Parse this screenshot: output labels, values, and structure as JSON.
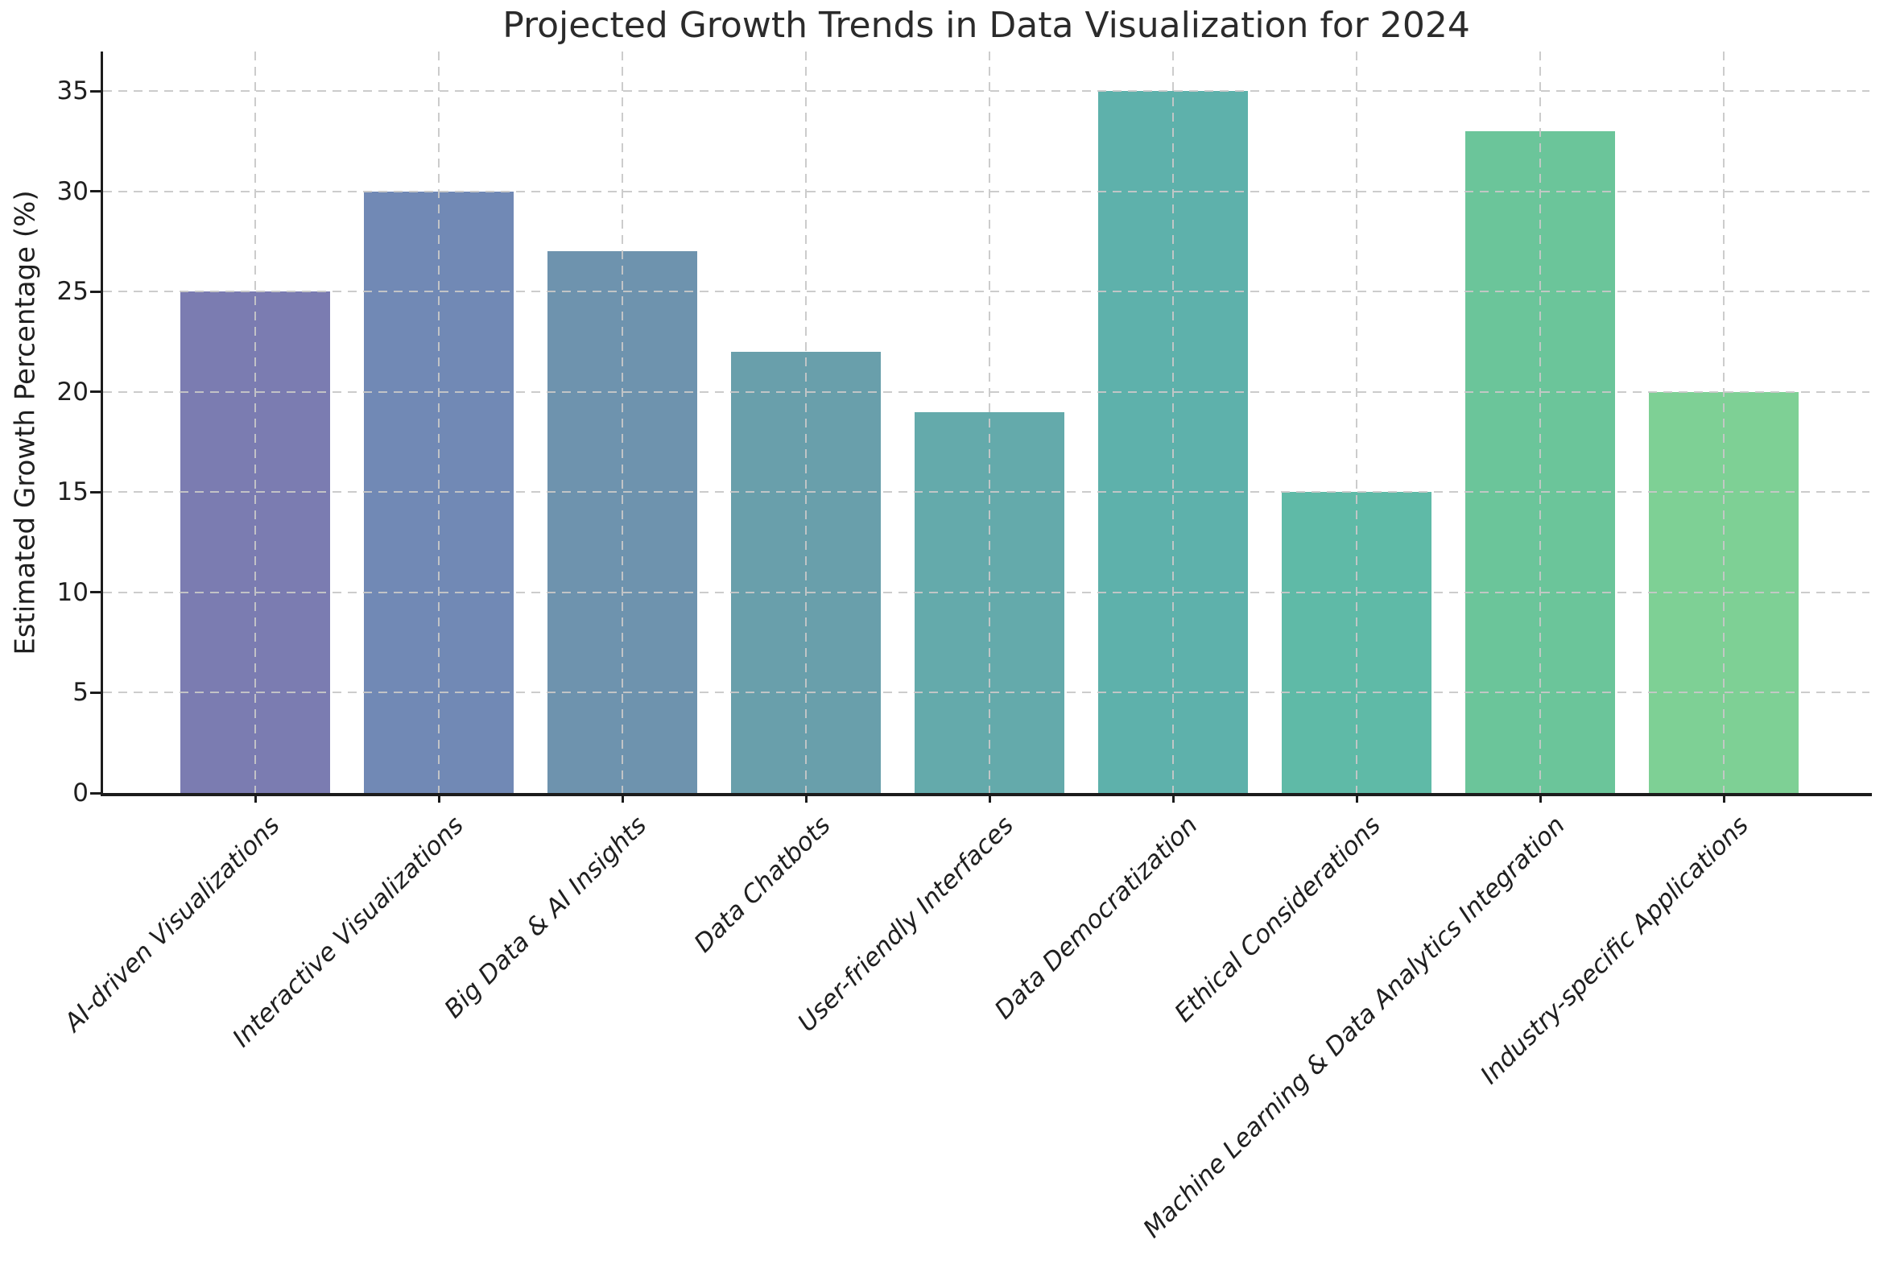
{
  "chart_data": {
    "type": "bar",
    "title": "Projected Growth Trends in Data Visualization for 2024",
    "ylabel": "Estimated Growth Percentage (%)",
    "xlabel": "",
    "categories": [
      "AI-driven Visualizations",
      "Interactive Visualizations",
      "Big Data & AI Insights",
      "Data Chatbots",
      "User-friendly Interfaces",
      "Data Democratization",
      "Ethical Considerations",
      "Machine Learning & Data Analytics Integration",
      "Industry-specific Applications"
    ],
    "values": [
      25,
      30,
      27,
      22,
      19,
      35,
      15,
      33,
      20
    ],
    "bar_colors": [
      "#7b7cb1",
      "#7189b5",
      "#6e93ae",
      "#699fab",
      "#64aaab",
      "#5eb1ab",
      "#5fbaa7",
      "#6bc59a",
      "#7ed095"
    ],
    "yticks": [
      0,
      5,
      10,
      15,
      20,
      25,
      30,
      35
    ],
    "ylim": [
      0,
      36.97
    ],
    "grid": "dashed",
    "grid_axes": "both",
    "grid_over_bars": true,
    "legend": "none",
    "xtick_style": "italic, rotated 45deg",
    "background_color": "#ffffff",
    "axis_color": "#1c1c1c",
    "grid_color": "#c8c8c8",
    "text_color": "#1f1f1f"
  }
}
